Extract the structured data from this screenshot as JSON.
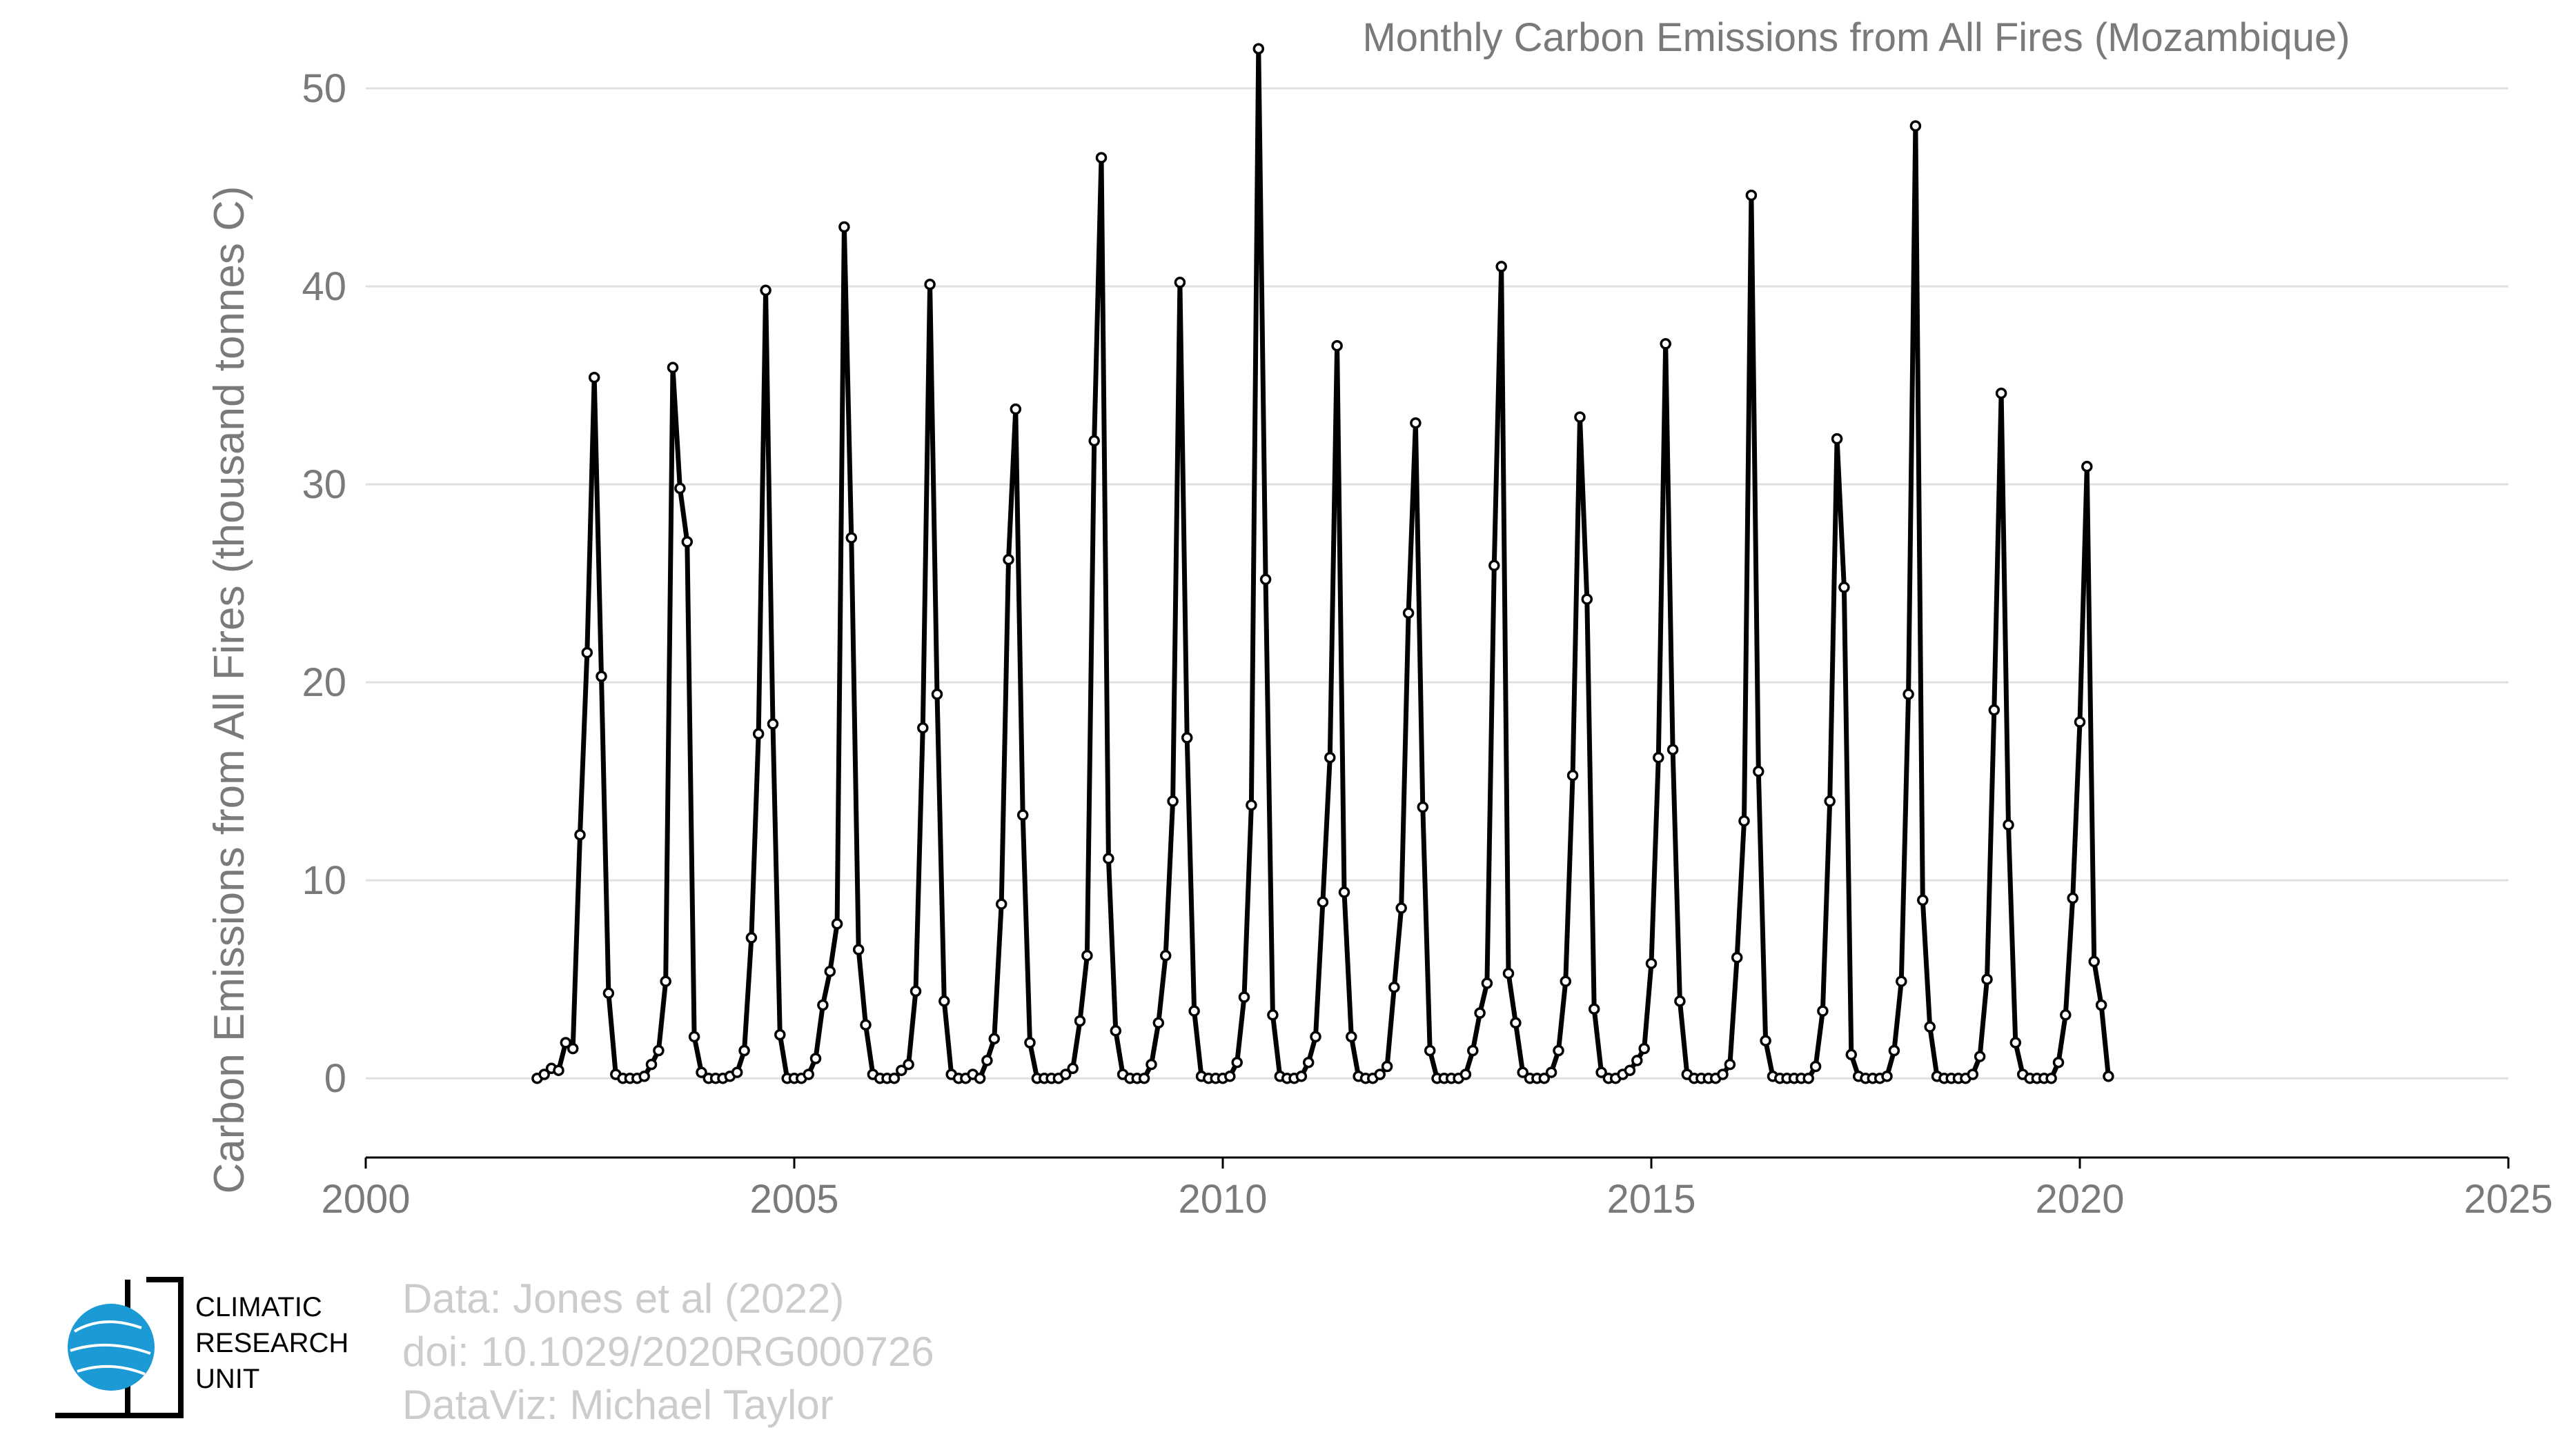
{
  "chart_data": {
    "type": "line",
    "title": "Monthly Carbon Emissions from All Fires (Mozambique)",
    "ylabel": "Carbon Emissions from All Fires (thousand tonnes C)",
    "xlabel": "",
    "xlim": [
      2000,
      2025
    ],
    "ylim": [
      -4,
      53
    ],
    "xticks": [
      "2000",
      "2005",
      "2010",
      "2015",
      "2020",
      "2025"
    ],
    "yticks": [
      "0",
      "10",
      "20",
      "30",
      "40",
      "50"
    ],
    "grid": "horizontal",
    "series": [
      {
        "color": "#000000",
        "x_start": 2002.0,
        "x_step_months": 1,
        "values": [
          0.0,
          0.2,
          0.5,
          0.4,
          1.8,
          1.5,
          12.3,
          21.5,
          35.4,
          20.3,
          4.3,
          0.2,
          0.0,
          0.0,
          0.0,
          0.1,
          0.7,
          1.4,
          4.9,
          35.9,
          29.8,
          27.1,
          2.1,
          0.3,
          0.0,
          0.0,
          0.0,
          0.1,
          0.3,
          1.4,
          7.1,
          17.4,
          39.8,
          17.9,
          2.2,
          0.0,
          0.0,
          0.0,
          0.2,
          1.0,
          3.7,
          5.4,
          7.8,
          43.0,
          27.3,
          6.5,
          2.7,
          0.2,
          0.0,
          0.0,
          0.0,
          0.4,
          0.7,
          4.4,
          17.7,
          40.1,
          19.4,
          3.9,
          0.2,
          0.0,
          0.0,
          0.2,
          0.0,
          0.9,
          2.0,
          8.8,
          26.2,
          33.8,
          13.3,
          1.8,
          0.0,
          0.0,
          0.0,
          0.0,
          0.2,
          0.5,
          2.9,
          6.2,
          32.2,
          46.5,
          11.1,
          2.4,
          0.2,
          0.0,
          0.0,
          0.0,
          0.7,
          2.8,
          6.2,
          14.0,
          40.2,
          17.2,
          3.4,
          0.1,
          0.0,
          0.0,
          0.0,
          0.1,
          0.8,
          4.1,
          13.8,
          52.0,
          25.2,
          3.2,
          0.1,
          0.0,
          0.0,
          0.1,
          0.8,
          2.1,
          8.9,
          16.2,
          37.0,
          9.4,
          2.1,
          0.1,
          0.0,
          0.0,
          0.2,
          0.6,
          4.6,
          8.6,
          23.5,
          33.1,
          13.7,
          1.4,
          0.0,
          0.0,
          0.0,
          0.0,
          0.2,
          1.4,
          3.3,
          4.8,
          25.9,
          41.0,
          5.3,
          2.8,
          0.3,
          0.0,
          0.0,
          0.0,
          0.3,
          1.4,
          4.9,
          15.3,
          33.4,
          24.2,
          3.5,
          0.3,
          0.0,
          0.0,
          0.2,
          0.4,
          0.9,
          1.5,
          5.8,
          16.2,
          37.1,
          16.6,
          3.9,
          0.2,
          0.0,
          0.0,
          0.0,
          0.0,
          0.2,
          0.7,
          6.1,
          13.0,
          44.6,
          15.5,
          1.9,
          0.1,
          0.0,
          0.0,
          0.0,
          0.0,
          0.0,
          0.6,
          3.4,
          14.0,
          32.3,
          24.8,
          1.2,
          0.1,
          0.0,
          0.0,
          0.0,
          0.1,
          1.4,
          4.9,
          19.4,
          48.1,
          9.0,
          2.6,
          0.1,
          0.0,
          0.0,
          0.0,
          0.0,
          0.2,
          1.1,
          5.0,
          18.6,
          34.6,
          12.8,
          1.8,
          0.2,
          0.0,
          0.0,
          0.0,
          0.0,
          0.8,
          3.2,
          9.1,
          18.0,
          30.9,
          5.9,
          3.7,
          0.1
        ]
      }
    ]
  },
  "credits": {
    "line1": "Data: Jones et al (2022)",
    "line2": "doi: 10.1029/2020RG000726",
    "line3": "DataViz: Michael Taylor"
  },
  "logo": {
    "line1": "CLIMATIC",
    "line2": "RESEARCH",
    "line3": "UNIT",
    "color": "#1b9ad6"
  }
}
